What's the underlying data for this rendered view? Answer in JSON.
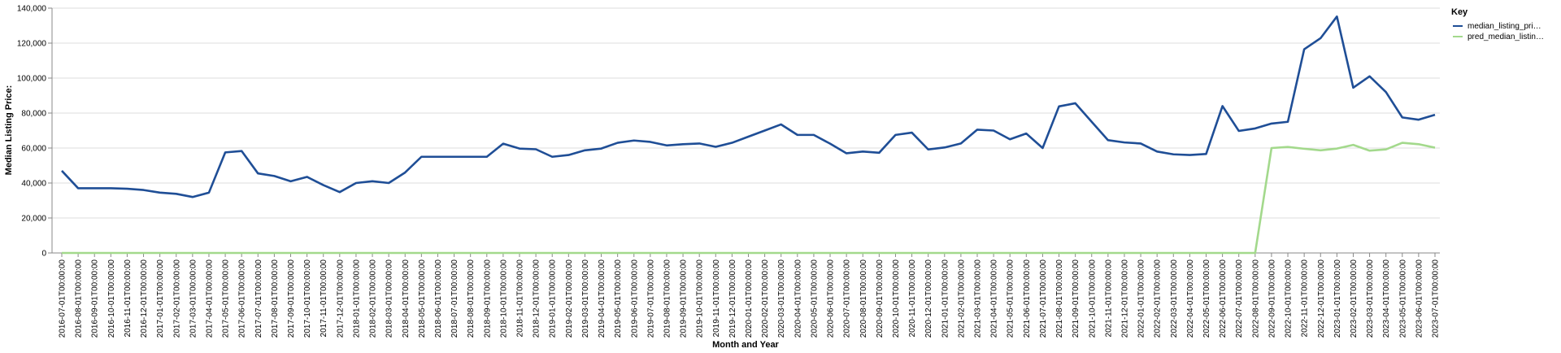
{
  "chart_data": {
    "type": "line",
    "xlabel": "Month and Year",
    "ylabel": "Median Listing Price:",
    "ylim": [
      0,
      140000
    ],
    "y_ticks": [
      "0",
      "20,000",
      "40,000",
      "60,000",
      "80,000",
      "100,000",
      "120,000",
      "140,000"
    ],
    "y_tick_values": [
      0,
      20000,
      40000,
      60000,
      80000,
      100000,
      120000,
      140000
    ],
    "grid": true,
    "legend_position": "top-right",
    "legend_title": "Key",
    "x": [
      "2016-07-01T00:00:00",
      "2016-08-01T00:00:00",
      "2016-09-01T00:00:00",
      "2016-10-01T00:00:00",
      "2016-11-01T00:00:00",
      "2016-12-01T00:00:00",
      "2017-01-01T00:00:00",
      "2017-02-01T00:00:00",
      "2017-03-01T00:00:00",
      "2017-04-01T00:00:00",
      "2017-05-01T00:00:00",
      "2017-06-01T00:00:00",
      "2017-07-01T00:00:00",
      "2017-08-01T00:00:00",
      "2017-09-01T00:00:00",
      "2017-10-01T00:00:00",
      "2017-11-01T00:00:00",
      "2017-12-01T00:00:00",
      "2018-01-01T00:00:00",
      "2018-02-01T00:00:00",
      "2018-03-01T00:00:00",
      "2018-04-01T00:00:00",
      "2018-05-01T00:00:00",
      "2018-06-01T00:00:00",
      "2018-07-01T00:00:00",
      "2018-08-01T00:00:00",
      "2018-09-01T00:00:00",
      "2018-10-01T00:00:00",
      "2018-11-01T00:00:00",
      "2018-12-01T00:00:00",
      "2019-01-01T00:00:00",
      "2019-02-01T00:00:00",
      "2019-03-01T00:00:00",
      "2019-04-01T00:00:00",
      "2019-05-01T00:00:00",
      "2019-06-01T00:00:00",
      "2019-07-01T00:00:00",
      "2019-08-01T00:00:00",
      "2019-09-01T00:00:00",
      "2019-10-01T00:00:00",
      "2019-11-01T00:00:00",
      "2019-12-01T00:00:00",
      "2020-01-01T00:00:00",
      "2020-02-01T00:00:00",
      "2020-03-01T00:00:00",
      "2020-04-01T00:00:00",
      "2020-05-01T00:00:00",
      "2020-06-01T00:00:00",
      "2020-07-01T00:00:00",
      "2020-08-01T00:00:00",
      "2020-09-01T00:00:00",
      "2020-10-01T00:00:00",
      "2020-11-01T00:00:00",
      "2020-12-01T00:00:00",
      "2021-01-01T00:00:00",
      "2021-02-01T00:00:00",
      "2021-03-01T00:00:00",
      "2021-04-01T00:00:00",
      "2021-05-01T00:00:00",
      "2021-06-01T00:00:00",
      "2021-07-01T00:00:00",
      "2021-08-01T00:00:00",
      "2021-09-01T00:00:00",
      "2021-10-01T00:00:00",
      "2021-11-01T00:00:00",
      "2021-12-01T00:00:00",
      "2022-01-01T00:00:00",
      "2022-02-01T00:00:00",
      "2022-03-01T00:00:00",
      "2022-04-01T00:00:00",
      "2022-05-01T00:00:00",
      "2022-06-01T00:00:00",
      "2022-07-01T00:00:00",
      "2022-08-01T00:00:00",
      "2022-09-01T00:00:00",
      "2022-10-01T00:00:00",
      "2022-11-01T00:00:00",
      "2022-12-01T00:00:00",
      "2023-01-01T00:00:00",
      "2023-02-01T00:00:00",
      "2023-03-01T00:00:00",
      "2023-04-01T00:00:00",
      "2023-05-01T00:00:00",
      "2023-06-01T00:00:00",
      "2023-07-01T00:00:00"
    ],
    "series": [
      {
        "name": "median_listing_pri…",
        "color": "#1f4e96",
        "values": [
          47000,
          37000,
          37000,
          37000,
          36700,
          36000,
          34500,
          33800,
          32000,
          34500,
          57500,
          58300,
          45500,
          44000,
          41000,
          43500,
          38800,
          34800,
          40000,
          41000,
          40000,
          46000,
          55000,
          55000,
          55000,
          55000,
          55000,
          62500,
          59700,
          59300,
          55000,
          56000,
          58700,
          59700,
          63000,
          64300,
          63500,
          61500,
          62200,
          62600,
          60700,
          63000,
          66500,
          70000,
          73500,
          67500,
          67500,
          62500,
          57000,
          58000,
          57300,
          67500,
          68800,
          59200,
          60300,
          62600,
          70500,
          70000,
          65000,
          68300,
          60000,
          83800,
          85600,
          75000,
          64500,
          63200,
          62600,
          58000,
          56400,
          56000,
          56600,
          84000,
          69800,
          71200,
          74000,
          75000,
          116500,
          122800,
          135200,
          94500,
          101000,
          92000,
          77500,
          76200,
          79000
        ]
      },
      {
        "name": "pred_median_listin…",
        "color": "#a3d98c",
        "values": [
          0,
          0,
          0,
          0,
          0,
          0,
          0,
          0,
          0,
          0,
          0,
          0,
          0,
          0,
          0,
          0,
          0,
          0,
          0,
          0,
          0,
          0,
          0,
          0,
          0,
          0,
          0,
          0,
          0,
          0,
          0,
          0,
          0,
          0,
          0,
          0,
          0,
          0,
          0,
          0,
          0,
          0,
          0,
          0,
          0,
          0,
          0,
          0,
          0,
          0,
          0,
          0,
          0,
          0,
          0,
          0,
          0,
          0,
          0,
          0,
          0,
          0,
          0,
          0,
          0,
          0,
          0,
          0,
          0,
          0,
          0,
          0,
          0,
          0,
          60000,
          60600,
          59600,
          58700,
          59700,
          61800,
          58500,
          59200,
          63000,
          62200,
          60200
        ]
      }
    ]
  }
}
